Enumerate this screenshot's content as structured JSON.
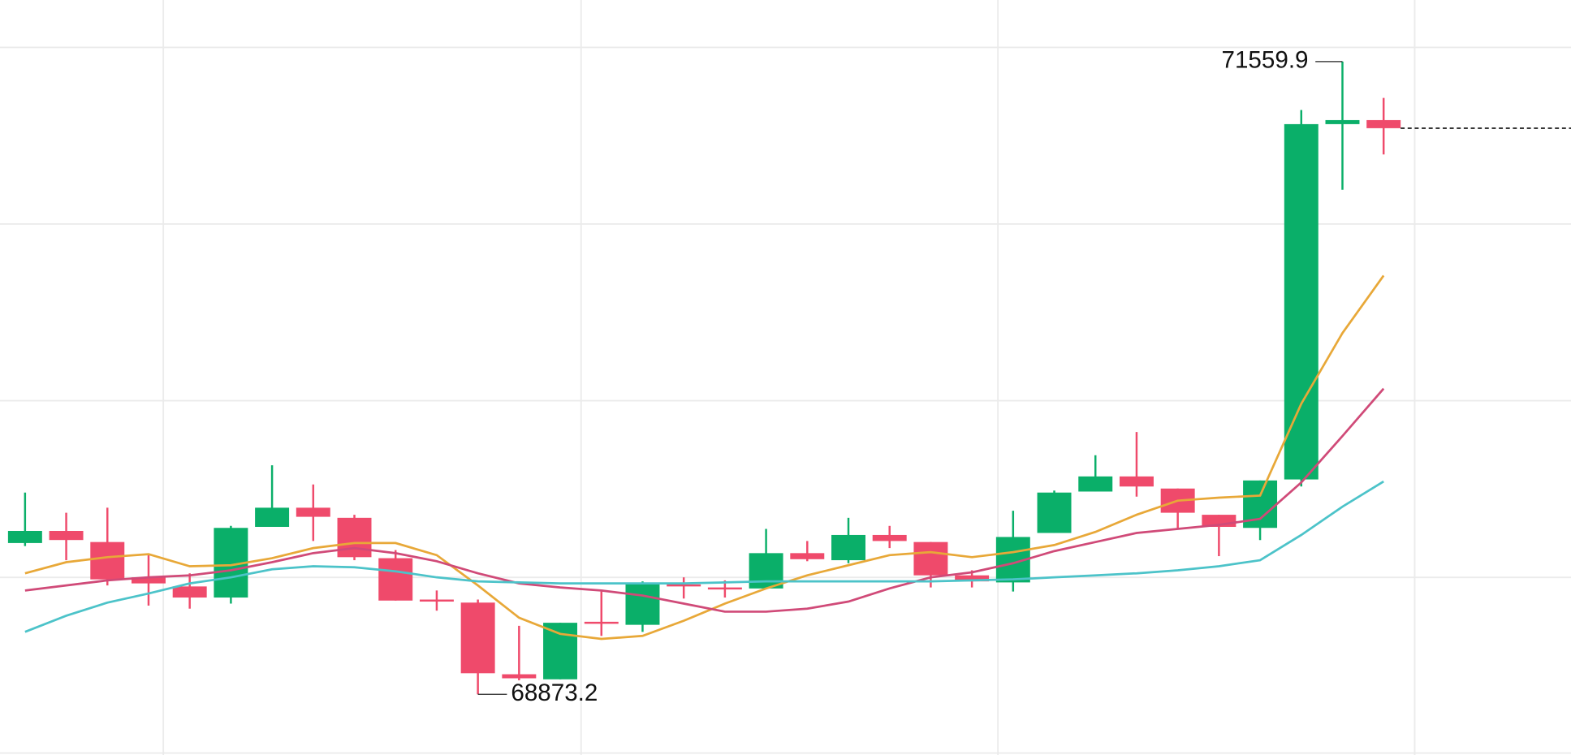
{
  "chart_data": {
    "type": "candlestick",
    "categories": [
      null,
      null,
      null,
      null,
      null,
      null,
      null,
      null,
      null,
      null,
      null,
      null,
      null,
      null,
      null,
      null,
      null,
      null,
      null,
      null,
      null,
      null,
      null,
      null,
      null,
      null,
      null,
      null,
      null,
      null,
      null,
      null,
      null,
      null
    ],
    "open": [
      69515.6,
      69567.0,
      69519.9,
      69369.9,
      69331.3,
      69284.2,
      69584.2,
      69665.6,
      69622.7,
      69451.3,
      69275.6,
      69262.7,
      68958.4,
      68937.0,
      69181.3,
      69168.4,
      69339.9,
      69327.0,
      69322.7,
      69472.7,
      69442.7,
      69549.9,
      69519.9,
      69378.4,
      69348.4,
      69558.4,
      69734.2,
      69798.4,
      69747.0,
      69635.6,
      69579.9,
      69785.6,
      71294.2,
      71311.3
    ],
    "high": [
      69729.9,
      69644.2,
      69665.6,
      69464.2,
      69387.0,
      69588.4,
      69845.6,
      69764.2,
      69635.6,
      69485.6,
      69314.2,
      69275.6,
      69164.2,
      69177.0,
      69309.9,
      69352.7,
      69369.9,
      69357.0,
      69575.6,
      69524.2,
      69622.7,
      69588.4,
      69519.9,
      69399.9,
      69652.7,
      69738.4,
      69888.4,
      69987.0,
      69747.0,
      69635.6,
      69781.3,
      71354.2,
      71559.9,
      71405.6
    ],
    "low": [
      69502.7,
      69442.7,
      69335.6,
      69249.9,
      69237.0,
      69258.4,
      69584.2,
      69524.2,
      69442.7,
      69271.3,
      69228.4,
      68873.2,
      68932.7,
      68937.0,
      69121.3,
      69138.4,
      69279.9,
      69284.2,
      69322.7,
      69438.4,
      69429.9,
      69494.2,
      69327.0,
      69327.0,
      69309.9,
      69558.4,
      69734.2,
      69712.7,
      69575.6,
      69459.9,
      69528.4,
      69755.6,
      71015.6,
      71165.6
    ],
    "close": [
      69567.0,
      69528.4,
      69361.3,
      69344.2,
      69284.2,
      69579.9,
      69665.6,
      69627.0,
      69455.6,
      69271.3,
      69267.0,
      68962.7,
      68941.3,
      69177.0,
      69172.7,
      69339.9,
      69331.3,
      69318.4,
      69472.7,
      69447.0,
      69549.9,
      69524.2,
      69378.4,
      69352.7,
      69541.3,
      69729.9,
      69798.4,
      69755.6,
      69644.2,
      69584.2,
      69781.3,
      71294.2,
      71311.3,
      71277.0
    ],
    "up_color": "#0aaf69",
    "down_color": "#ef4a6b",
    "series": [
      {
        "color": "#e8a838",
        "values": [
          69387.0,
          69434.2,
          69455.6,
          69468.4,
          69417.0,
          69421.3,
          69451.3,
          69494.2,
          69515.6,
          69515.6,
          69464.2,
          69335.6,
          69198.4,
          69129.9,
          69108.4,
          69121.3,
          69185.6,
          69258.4,
          69322.7,
          69378.4,
          69421.3,
          69464.2,
          69477.0,
          69455.6,
          69477.0,
          69507.0,
          69562.7,
          69635.6,
          69695.6,
          69708.4,
          69717.0,
          70107.0,
          70407.0,
          70651.3
        ]
      },
      {
        "color": "#d04a78",
        "values": [
          69314.2,
          69335.6,
          69357.0,
          69369.9,
          69378.4,
          69399.9,
          69434.2,
          69472.7,
          69494.2,
          69472.7,
          69438.4,
          69387.0,
          69344.2,
          69327.0,
          69314.2,
          69292.7,
          69258.4,
          69224.2,
          69224.2,
          69237.0,
          69267.0,
          69322.7,
          69369.9,
          69391.3,
          69429.9,
          69481.3,
          69519.9,
          69558.4,
          69575.6,
          69592.7,
          69618.4,
          69772.7,
          69969.9,
          70171.3
        ]
      },
      {
        "color": "#4cc3c9",
        "values": [
          69138.4,
          69207.0,
          69262.7,
          69301.3,
          69344.2,
          69369.9,
          69404.2,
          69417.0,
          69412.7,
          69395.6,
          69369.9,
          69352.7,
          69348.4,
          69344.2,
          69344.2,
          69344.2,
          69344.2,
          69348.4,
          69352.7,
          69352.7,
          69352.7,
          69352.7,
          69352.7,
          69357.0,
          69361.3,
          69369.9,
          69378.4,
          69387.0,
          69399.9,
          69417.0,
          69442.7,
          69549.9,
          69669.9,
          69777.0
        ]
      }
    ],
    "ylim": [
      68615.6,
      71821.3
    ],
    "yticks": [
      69370,
      70120,
      70870,
      71620
    ],
    "grid": true,
    "last_price_line": true,
    "high_low_labels": true
  }
}
